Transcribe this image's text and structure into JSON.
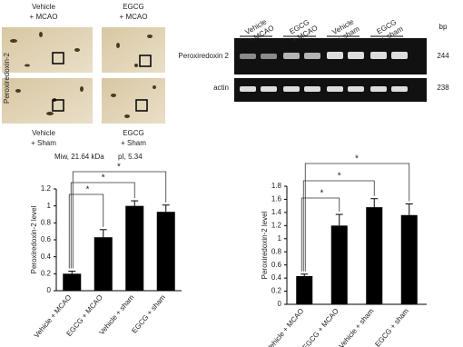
{
  "gel_2d": {
    "side_label": "Peroxiredoxin-2",
    "panels": [
      [
        "Vehicle",
        "+ MCAO"
      ],
      [
        "EGCG",
        "+ MCAO"
      ],
      [
        "Vehicle",
        "+ Sham"
      ],
      [
        "EGCG",
        "+ Sham"
      ]
    ],
    "caption": [
      "Miw, 21.64  kDa",
      "pI, 5.34"
    ]
  },
  "gel_pcr": {
    "lanes": [
      [
        "Vehicle",
        "+ MCAO"
      ],
      [
        "EGCG",
        "+ MCAO"
      ],
      [
        "Vehicle",
        "+ sham"
      ],
      [
        "EGCG",
        "+ sham"
      ]
    ],
    "rows": [
      "Peroxiredoxin 2",
      "actin"
    ],
    "size_header": "bp",
    "sizes": [
      "244",
      "238"
    ]
  },
  "chart_data": [
    {
      "type": "bar",
      "y_label": "Peroxiredoxin-2 level",
      "categories": [
        "Vehicle + MCAO",
        "EGCG + MCAO",
        "Vehicle + sham",
        "EGCG + sham"
      ],
      "values": [
        0.2,
        0.63,
        1.0,
        0.93
      ],
      "errors": [
        0.03,
        0.09,
        0.06,
        0.08
      ],
      "color": "#000000",
      "ylim": [
        0,
        1.2
      ],
      "yticks": [
        0,
        0.2,
        0.4,
        0.6,
        0.8,
        1,
        1.2
      ],
      "annotations": [
        "*",
        "*",
        "*"
      ]
    },
    {
      "type": "bar",
      "y_label": "Peroxiredoxin-2 level",
      "categories": [
        "Vehicle + MCAO",
        "EGCG + MCAO",
        "Vehicle + sham",
        "EGCG + sham"
      ],
      "values": [
        0.43,
        1.2,
        1.48,
        1.36
      ],
      "errors": [
        0.03,
        0.17,
        0.13,
        0.17
      ],
      "color": "#000000",
      "ylim": [
        0,
        1.8
      ],
      "yticks": [
        0,
        0.2,
        0.4,
        0.6,
        0.8,
        1,
        1.2,
        1.4,
        1.6,
        1.8
      ],
      "annotations": [
        "*",
        "*",
        "*"
      ]
    }
  ]
}
